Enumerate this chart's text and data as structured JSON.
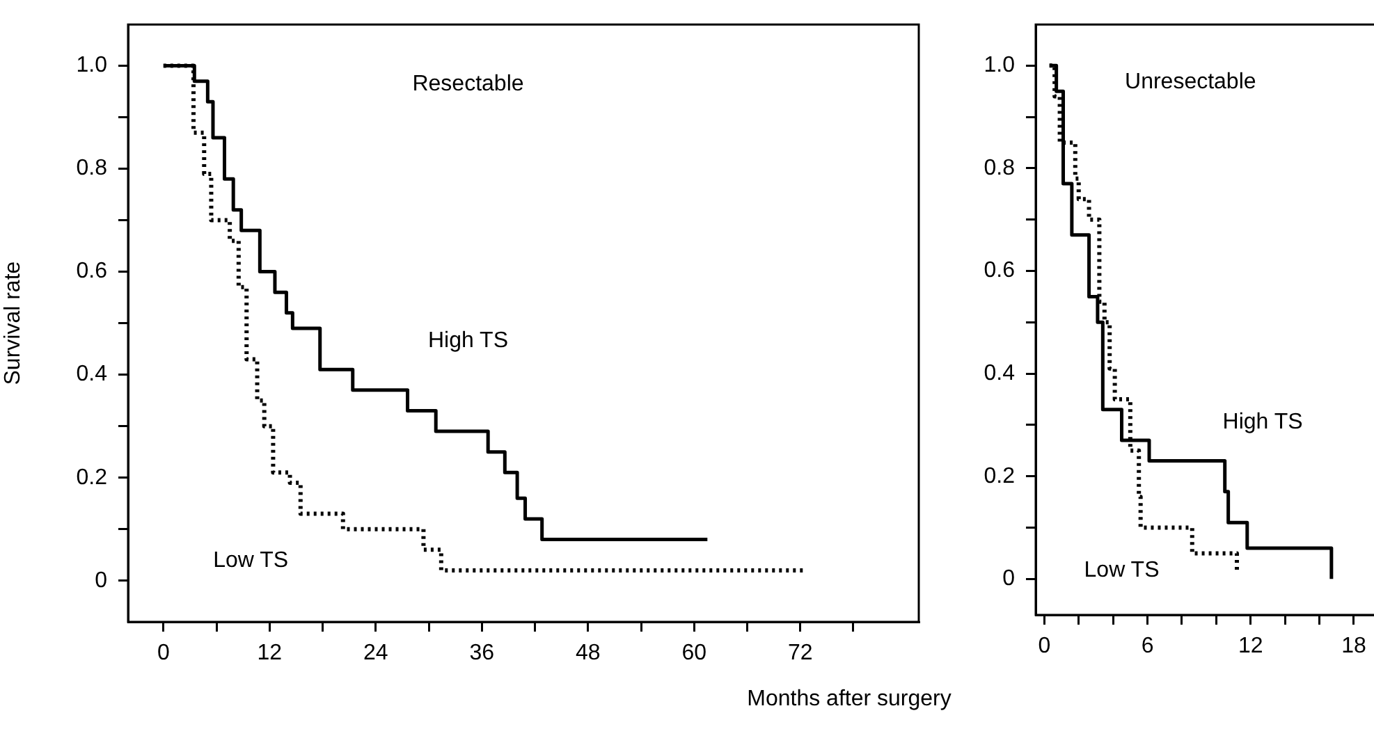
{
  "chart_data": [
    {
      "type": "step",
      "title": "Resectable",
      "xlabel": "Months after surgery",
      "ylabel": "Survival rate",
      "xlim": [
        -4,
        85.4
      ],
      "ylim": [
        -0.08,
        1.08
      ],
      "xticks": [
        0,
        {
          "value": 6,
          "label": null
        },
        12,
        {
          "value": 18,
          "label": null
        },
        24,
        {
          "value": 30,
          "label": null
        },
        36,
        {
          "value": 42,
          "label": null
        },
        48,
        {
          "value": 54,
          "label": null
        },
        60,
        {
          "value": 66,
          "label": null
        },
        72,
        {
          "value": 78,
          "label": null
        }
      ],
      "yticks": [
        {
          "value": 0,
          "label": "0"
        },
        {
          "value": 0.1,
          "label": null
        },
        0.2,
        {
          "value": 0.3,
          "label": null
        },
        0.4,
        {
          "value": 0.5,
          "label": null
        },
        0.6,
        {
          "value": 0.7,
          "label": null
        },
        0.8,
        {
          "value": 0.9,
          "label": null
        },
        {
          "value": 1,
          "label": "1.0"
        }
      ],
      "series": [
        {
          "name": "High TS",
          "color": "#000000",
          "line_style": "solid",
          "x": [
            0,
            3.5,
            5.0,
            5.6,
            6.9,
            7.9,
            8.8,
            10.9,
            12.6,
            13.9,
            14.6,
            17.7,
            21.4,
            27.6,
            30.8,
            36.7,
            38.6,
            40.0,
            40.9,
            42.8,
            61.5
          ],
          "values": [
            1,
            0.97,
            0.93,
            0.86,
            0.78,
            0.72,
            0.68,
            0.6,
            0.56,
            0.52,
            0.49,
            0.41,
            0.37,
            0.33,
            0.29,
            0.25,
            0.21,
            0.16,
            0.12,
            0.08,
            0.08
          ]
        },
        {
          "name": "Low TS",
          "color": "#000000",
          "line_style": "dotted",
          "x": [
            0,
            3.4,
            4.6,
            5.4,
            7.5,
            8.5,
            9.4,
            10.6,
            11.4,
            12.4,
            14.3,
            15.5,
            20.3,
            29.4,
            31.4,
            72.5
          ],
          "values": [
            1,
            0.87,
            0.79,
            0.7,
            0.66,
            0.57,
            0.43,
            0.35,
            0.3,
            0.21,
            0.19,
            0.13,
            0.1,
            0.06,
            0.02,
            0.02
          ]
        }
      ]
    },
    {
      "type": "step",
      "title": "Unresectable",
      "xlim": [
        -0.5,
        19.5
      ],
      "ylim": [
        -0.07,
        1.08
      ],
      "xticks": [
        0,
        {
          "value": 2,
          "label": null
        },
        {
          "value": 4,
          "label": null
        },
        6,
        {
          "value": 8,
          "label": null
        },
        {
          "value": 10,
          "label": null
        },
        12,
        {
          "value": 14,
          "label": null
        },
        {
          "value": 16,
          "label": null
        },
        18
      ],
      "yticks": [
        {
          "value": 0,
          "label": "0"
        },
        {
          "value": 0.1,
          "label": null
        },
        0.2,
        {
          "value": 0.3,
          "label": null
        },
        0.4,
        {
          "value": 0.5,
          "label": null
        },
        0.6,
        {
          "value": 0.7,
          "label": null
        },
        0.8,
        {
          "value": 0.9,
          "label": null
        },
        {
          "value": 1,
          "label": "1.0"
        }
      ],
      "series": [
        {
          "name": "High TS",
          "color": "#000000",
          "line_style": "solid",
          "x": [
            0.3,
            0.7,
            1.1,
            1.6,
            2.6,
            3.1,
            3.4,
            4.5,
            6.1,
            10.5,
            10.7,
            11.8,
            16.7
          ],
          "values": [
            1,
            0.95,
            0.77,
            0.67,
            0.55,
            0.5,
            0.33,
            0.27,
            0.23,
            0.17,
            0.11,
            0.06,
            0
          ]
        },
        {
          "name": "Low TS",
          "color": "#000000",
          "line_style": "dotted",
          "x": [
            0.3,
            0.6,
            0.9,
            1.8,
            2.0,
            2.6,
            3.2,
            3.5,
            3.8,
            4.1,
            5.0,
            5.5,
            5.6,
            8.6,
            11.2
          ],
          "values": [
            1,
            0.94,
            0.85,
            0.78,
            0.74,
            0.7,
            0.54,
            0.5,
            0.41,
            0.35,
            0.25,
            0.16,
            0.1,
            0.05,
            0.01
          ]
        }
      ]
    }
  ]
}
